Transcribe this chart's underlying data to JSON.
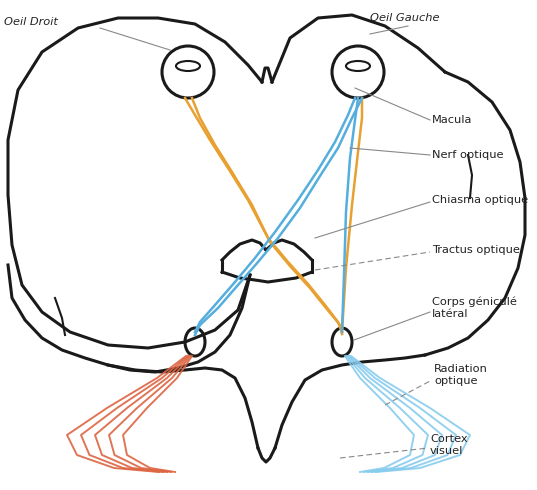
{
  "bg_color": "#ffffff",
  "brain_color": "#1a1a1a",
  "orange_color": "#E8A030",
  "blue_color": "#55AEDD",
  "red_color": "#DD6644",
  "light_blue_color": "#88CCEE",
  "ann_color": "#888888",
  "text_color": "#222222",
  "labels": {
    "oeil_droit": "Oeil Droit",
    "oeil_gauche": "Oeil Gauche",
    "macula": "Macula",
    "nerf_optique": "Nerf optique",
    "chiasma": "Chiasma optique",
    "tractus": "Tractus optique",
    "corps": "Corps géniculé\nlatéral",
    "radiation": "Radiation\noptique",
    "cortex": "Cortex\nvisuel"
  },
  "figsize": [
    5.37,
    4.9
  ],
  "dpi": 100
}
